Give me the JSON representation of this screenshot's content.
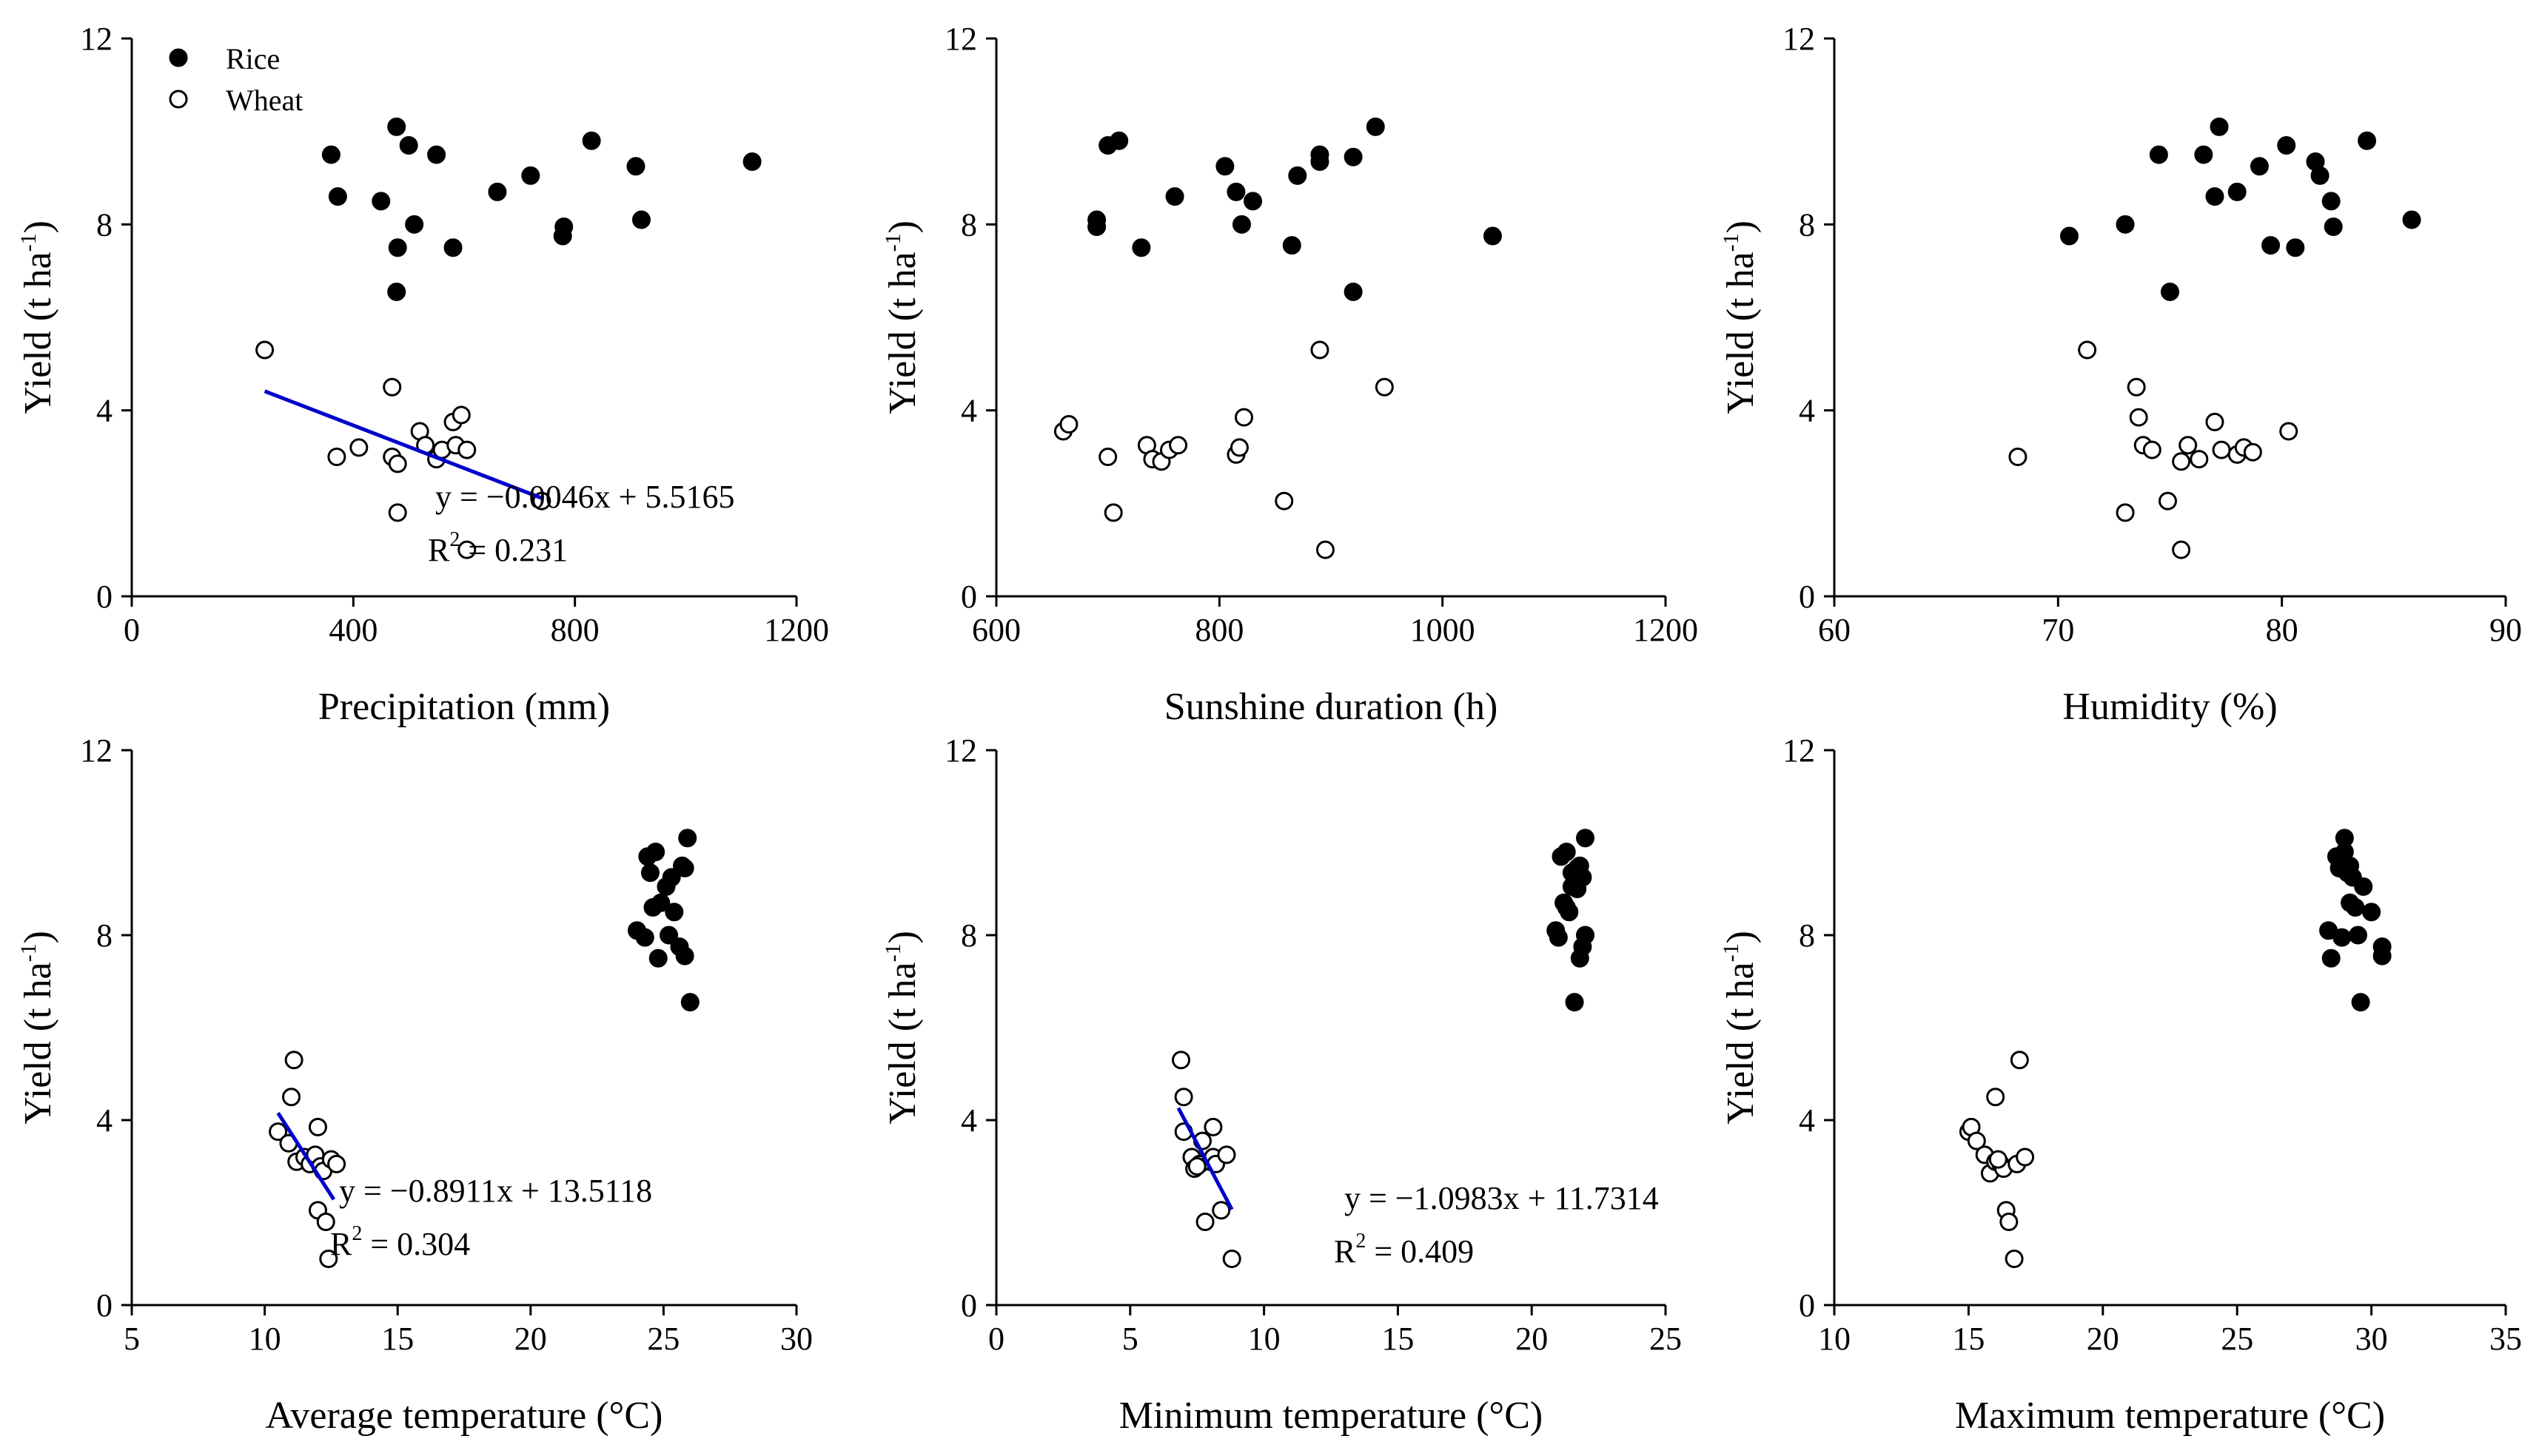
{
  "figure": {
    "legend": {
      "rice_label": "Rice",
      "wheat_label": "Wheat",
      "placement": "top-left of first panel"
    },
    "colors": {
      "rice_fill": "#000000",
      "wheat_fill": "#ffffff",
      "marker_stroke": "#000000",
      "fit_line": "#0000cc",
      "axis": "#000000"
    }
  },
  "chart_data": [
    {
      "type": "scatter",
      "xlabel": "Precipitation (mm)",
      "ylabel": {
        "main": "Yield (t ha",
        "sup": "-1",
        "close": ")"
      },
      "xlim": [
        0,
        1200
      ],
      "ylim": [
        0,
        12
      ],
      "xticks": [
        0,
        400,
        800,
        1200
      ],
      "yticks": [
        0,
        4,
        8,
        12
      ],
      "series": [
        {
          "name": "Rice",
          "points": [
            [
              360,
              9.5
            ],
            [
              372,
              8.6
            ],
            [
              450,
              8.5
            ],
            [
              478,
              10.1
            ],
            [
              500,
              9.7
            ],
            [
              550,
              9.5
            ],
            [
              720,
              9.05
            ],
            [
              830,
              9.8
            ],
            [
              910,
              9.25
            ],
            [
              1120,
              9.35
            ],
            [
              480,
              7.5
            ],
            [
              510,
              8.0
            ],
            [
              580,
              7.5
            ],
            [
              660,
              8.7
            ],
            [
              780,
              7.95
            ],
            [
              778,
              7.75
            ],
            [
              920,
              8.1
            ],
            [
              478,
              6.55
            ]
          ]
        },
        {
          "name": "Wheat",
          "points": [
            [
              240,
              5.3
            ],
            [
              370,
              3.0
            ],
            [
              410,
              3.2
            ],
            [
              470,
              4.5
            ],
            [
              470,
              3.0
            ],
            [
              480,
              2.85
            ],
            [
              480,
              1.8
            ],
            [
              520,
              3.55
            ],
            [
              530,
              3.25
            ],
            [
              550,
              2.95
            ],
            [
              560,
              3.15
            ],
            [
              580,
              3.75
            ],
            [
              585,
              3.25
            ],
            [
              595,
              3.9
            ],
            [
              605,
              3.15
            ],
            [
              605,
              1.0
            ],
            [
              740,
              2.05
            ]
          ]
        }
      ],
      "fit": {
        "x_range": [
          240,
          740
        ],
        "equation": "y = −0.0046x + 5.5165",
        "r2_prefix": "R",
        "r2_sup": "2",
        "r2_suffix": " = 0.231"
      }
    },
    {
      "type": "scatter",
      "xlabel": "Sunshine duration (h)",
      "ylabel": {
        "main": "Yield (t ha",
        "sup": "-1",
        "close": ")"
      },
      "xlim": [
        600,
        1200
      ],
      "ylim": [
        0,
        12
      ],
      "xticks": [
        600,
        800,
        1000,
        1200
      ],
      "yticks": [
        0,
        4,
        8,
        12
      ],
      "series": [
        {
          "name": "Rice",
          "points": [
            [
              690,
              8.1
            ],
            [
              690,
              7.95
            ],
            [
              700,
              9.7
            ],
            [
              710,
              9.8
            ],
            [
              730,
              7.5
            ],
            [
              760,
              8.6
            ],
            [
              805,
              9.25
            ],
            [
              815,
              8.7
            ],
            [
              820,
              8.0
            ],
            [
              830,
              8.5
            ],
            [
              865,
              7.55
            ],
            [
              870,
              9.05
            ],
            [
              890,
              9.5
            ],
            [
              890,
              9.35
            ],
            [
              920,
              6.55
            ],
            [
              920,
              9.45
            ],
            [
              940,
              10.1
            ],
            [
              1045,
              7.75
            ]
          ]
        },
        {
          "name": "Wheat",
          "points": [
            [
              660,
              3.55
            ],
            [
              665,
              3.7
            ],
            [
              700,
              3.0
            ],
            [
              705,
              1.8
            ],
            [
              735,
              3.25
            ],
            [
              740,
              2.95
            ],
            [
              748,
              2.9
            ],
            [
              755,
              3.15
            ],
            [
              763,
              3.25
            ],
            [
              815,
              3.05
            ],
            [
              818,
              3.2
            ],
            [
              822,
              3.85
            ],
            [
              858,
              2.05
            ],
            [
              890,
              5.3
            ],
            [
              895,
              1.0
            ],
            [
              948,
              4.5
            ]
          ]
        }
      ]
    },
    {
      "type": "scatter",
      "xlabel": "Humidity (%)",
      "ylabel": {
        "main": "Yield (t ha",
        "sup": "-1",
        "close": ")"
      },
      "xlim": [
        60,
        90
      ],
      "ylim": [
        0,
        12
      ],
      "xticks": [
        60,
        70,
        80,
        90
      ],
      "yticks": [
        0,
        4,
        8,
        12
      ],
      "series": [
        {
          "name": "Rice",
          "points": [
            [
              70.5,
              7.75
            ],
            [
              73.0,
              8.0
            ],
            [
              74.5,
              9.5
            ],
            [
              75.0,
              6.55
            ],
            [
              76.5,
              9.5
            ],
            [
              77.0,
              8.6
            ],
            [
              77.2,
              10.1
            ],
            [
              78.0,
              8.7
            ],
            [
              79.0,
              9.25
            ],
            [
              79.5,
              7.55
            ],
            [
              80.2,
              9.7
            ],
            [
              80.6,
              7.5
            ],
            [
              81.5,
              9.35
            ],
            [
              81.7,
              9.05
            ],
            [
              82.2,
              8.5
            ],
            [
              82.3,
              7.95
            ],
            [
              83.8,
              9.8
            ],
            [
              85.8,
              8.1
            ]
          ]
        },
        {
          "name": "Wheat",
          "points": [
            [
              68.2,
              3.0
            ],
            [
              71.3,
              5.3
            ],
            [
              73.0,
              1.8
            ],
            [
              73.5,
              4.5
            ],
            [
              73.6,
              3.85
            ],
            [
              73.8,
              3.25
            ],
            [
              74.2,
              3.15
            ],
            [
              74.9,
              2.05
            ],
            [
              75.5,
              2.9
            ],
            [
              75.5,
              1.0
            ],
            [
              75.8,
              3.25
            ],
            [
              76.3,
              2.95
            ],
            [
              77.0,
              3.75
            ],
            [
              77.3,
              3.15
            ],
            [
              78.0,
              3.05
            ],
            [
              78.3,
              3.2
            ],
            [
              78.7,
              3.1
            ],
            [
              80.3,
              3.55
            ]
          ]
        }
      ]
    },
    {
      "type": "scatter",
      "xlabel": "Average temperature (°C)",
      "ylabel": {
        "main": "Yield (t ha",
        "sup": "-1",
        "close": ")"
      },
      "xlim": [
        5,
        30
      ],
      "ylim": [
        0,
        12
      ],
      "xticks": [
        5,
        10,
        15,
        20,
        25,
        30
      ],
      "yticks": [
        0,
        4,
        8,
        12
      ],
      "series": [
        {
          "name": "Rice",
          "points": [
            [
              24.0,
              8.1
            ],
            [
              24.3,
              7.95
            ],
            [
              24.4,
              9.7
            ],
            [
              24.5,
              9.35
            ],
            [
              24.6,
              8.6
            ],
            [
              24.7,
              9.8
            ],
            [
              24.8,
              7.5
            ],
            [
              24.9,
              8.7
            ],
            [
              25.1,
              9.05
            ],
            [
              25.2,
              8.0
            ],
            [
              25.3,
              9.25
            ],
            [
              25.4,
              8.5
            ],
            [
              25.6,
              7.75
            ],
            [
              25.7,
              9.5
            ],
            [
              25.8,
              7.55
            ],
            [
              25.8,
              9.45
            ],
            [
              25.9,
              10.1
            ],
            [
              26.0,
              6.55
            ]
          ]
        },
        {
          "name": "Wheat",
          "points": [
            [
              10.5,
              3.75
            ],
            [
              10.9,
              3.5
            ],
            [
              11.0,
              4.5
            ],
            [
              11.1,
              5.3
            ],
            [
              11.2,
              3.1
            ],
            [
              11.5,
              3.2
            ],
            [
              11.7,
              3.05
            ],
            [
              11.9,
              3.25
            ],
            [
              12.0,
              3.85
            ],
            [
              12.0,
              2.05
            ],
            [
              12.1,
              3.0
            ],
            [
              12.2,
              2.9
            ],
            [
              12.3,
              1.8
            ],
            [
              12.4,
              1.0
            ],
            [
              12.5,
              3.15
            ],
            [
              12.7,
              3.05
            ]
          ]
        }
      ],
      "fit": {
        "x_range": [
          10.5,
          12.6
        ],
        "equation": "y = −0.8911x + 13.5118",
        "r2_prefix": "R",
        "r2_sup": "2",
        "r2_suffix": "  = 0.304"
      }
    },
    {
      "type": "scatter",
      "xlabel": "Minimum temperature (°C)",
      "ylabel": {
        "main": "Yield (t ha",
        "sup": "-1",
        "close": ")"
      },
      "xlim": [
        0,
        25
      ],
      "ylim": [
        0,
        12
      ],
      "xticks": [
        0,
        5,
        10,
        15,
        20,
        25
      ],
      "yticks": [
        0,
        4,
        8,
        12
      ],
      "series": [
        {
          "name": "Rice",
          "points": [
            [
              20.9,
              8.1
            ],
            [
              21.0,
              7.95
            ],
            [
              21.1,
              9.7
            ],
            [
              21.2,
              8.7
            ],
            [
              21.3,
              8.6
            ],
            [
              21.3,
              9.8
            ],
            [
              21.4,
              8.5
            ],
            [
              21.5,
              9.05
            ],
            [
              21.5,
              9.35
            ],
            [
              21.6,
              6.55
            ],
            [
              21.7,
              9.45
            ],
            [
              21.8,
              7.5
            ],
            [
              21.9,
              7.75
            ],
            [
              21.9,
              9.25
            ],
            [
              22.0,
              10.1
            ],
            [
              22.0,
              8.0
            ],
            [
              21.8,
              9.5
            ],
            [
              21.7,
              9.0
            ]
          ]
        },
        {
          "name": "Wheat",
          "points": [
            [
              6.9,
              5.3
            ],
            [
              7.0,
              4.5
            ],
            [
              7.0,
              3.75
            ],
            [
              7.3,
              3.2
            ],
            [
              7.4,
              2.95
            ],
            [
              7.6,
              3.05
            ],
            [
              7.7,
              3.55
            ],
            [
              7.8,
              1.8
            ],
            [
              8.0,
              3.1
            ],
            [
              8.1,
              3.2
            ],
            [
              8.1,
              3.85
            ],
            [
              8.2,
              3.05
            ],
            [
              8.4,
              2.05
            ],
            [
              8.6,
              3.25
            ],
            [
              8.8,
              1.0
            ],
            [
              7.5,
              3.0
            ]
          ]
        }
      ],
      "fit": {
        "x_range": [
          6.8,
          8.8
        ],
        "equation": "y = −1.0983x + 11.7314",
        "r2_prefix": "R",
        "r2_sup": "2",
        "r2_suffix": "  = 0.409"
      }
    },
    {
      "type": "scatter",
      "xlabel": "Maximum temperature (°C)",
      "ylabel": {
        "main": "Yield (t ha",
        "sup": "-1",
        "close": ")"
      },
      "xlim": [
        10,
        35
      ],
      "ylim": [
        0,
        12
      ],
      "xticks": [
        10,
        15,
        20,
        25,
        30,
        35
      ],
      "yticks": [
        0,
        4,
        8,
        12
      ],
      "series": [
        {
          "name": "Rice",
          "points": [
            [
              28.4,
              8.1
            ],
            [
              28.5,
              7.5
            ],
            [
              28.7,
              9.7
            ],
            [
              28.9,
              7.95
            ],
            [
              29.0,
              9.8
            ],
            [
              29.0,
              10.1
            ],
            [
              29.1,
              9.35
            ],
            [
              29.2,
              9.5
            ],
            [
              29.2,
              8.7
            ],
            [
              29.3,
              9.25
            ],
            [
              29.4,
              8.6
            ],
            [
              29.5,
              8.0
            ],
            [
              29.6,
              6.55
            ],
            [
              29.7,
              9.05
            ],
            [
              30.0,
              8.5
            ],
            [
              30.4,
              7.75
            ],
            [
              30.4,
              7.55
            ],
            [
              28.8,
              9.45
            ]
          ]
        },
        {
          "name": "Wheat",
          "points": [
            [
              15.0,
              3.75
            ],
            [
              15.1,
              3.85
            ],
            [
              15.3,
              3.55
            ],
            [
              15.6,
              3.25
            ],
            [
              15.8,
              2.85
            ],
            [
              16.0,
              3.1
            ],
            [
              16.0,
              4.5
            ],
            [
              16.2,
              3.05
            ],
            [
              16.3,
              2.95
            ],
            [
              16.4,
              2.05
            ],
            [
              16.5,
              1.8
            ],
            [
              16.7,
              1.0
            ],
            [
              16.8,
              3.05
            ],
            [
              16.9,
              5.3
            ],
            [
              17.1,
              3.2
            ],
            [
              16.1,
              3.15
            ]
          ]
        }
      ]
    }
  ]
}
